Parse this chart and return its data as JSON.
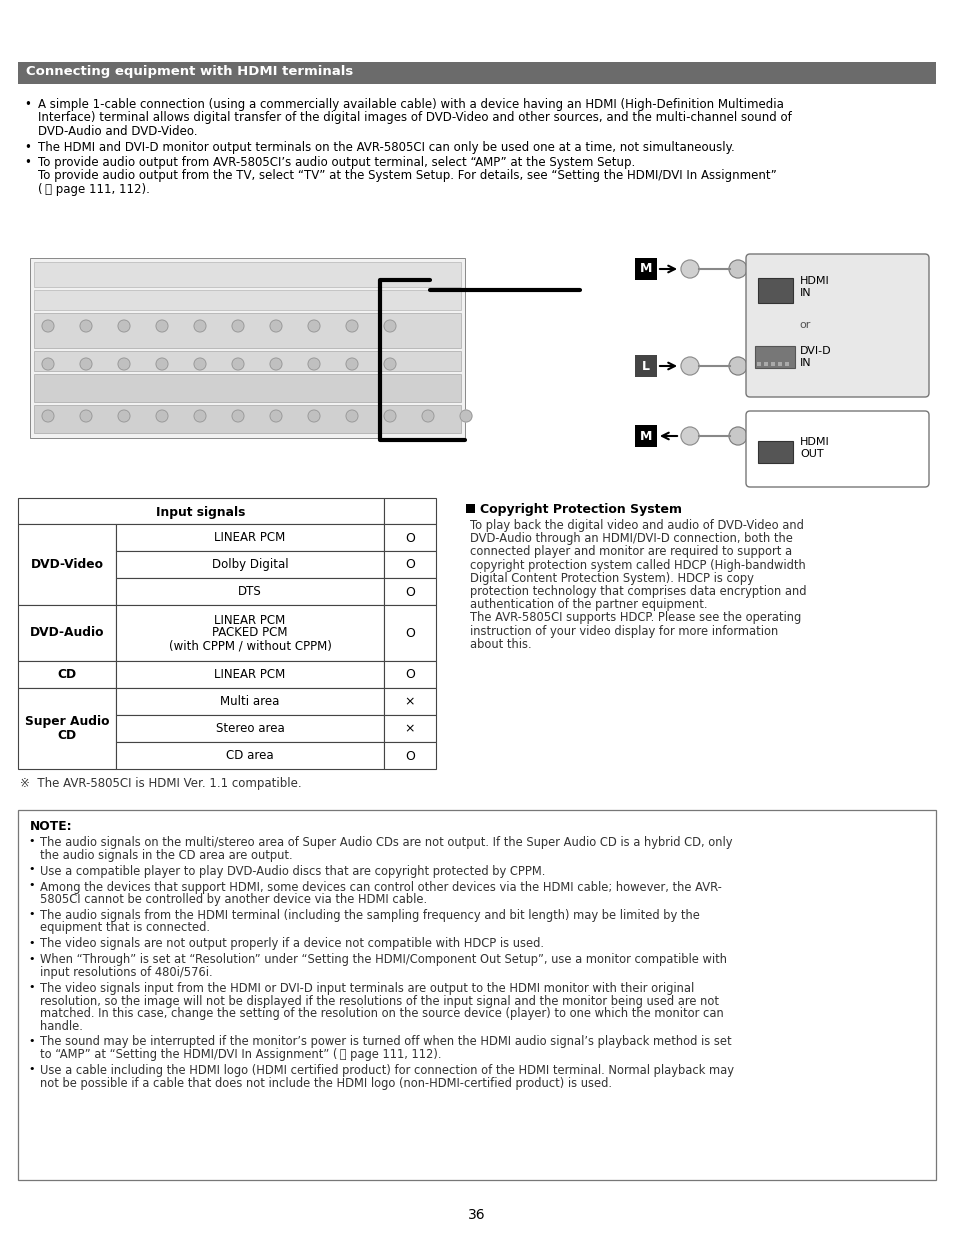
{
  "page_bg": "#ffffff",
  "header_bg": "#6b6b6b",
  "header_text": "Connecting equipment with HDMI terminals",
  "header_text_color": "#ffffff",
  "bullet_points": [
    [
      "A simple 1-cable connection (using a commercially available cable) with a device having an HDMI (High-Definition Multimedia",
      "Interface) terminal allows digital transfer of the digital images of DVD-Video and other sources, and the multi-channel sound of",
      "DVD-Audio and DVD-Video."
    ],
    [
      "The HDMI and DVI-D monitor output terminals on the AVR-5805CI can only be used one at a time, not simultaneously."
    ],
    [
      "To provide audio output from AVR-5805CI’s audio output terminal, select “AMP” at the System Setup.",
      "To provide audio output from the TV, select “TV” at the System Setup. For details, see “Setting the HDMI/DVI In Assignment”",
      "(  page 111, 112)."
    ]
  ],
  "table_header": "Input signals",
  "table_rows": [
    [
      "DVD-Video",
      "LINEAR PCM",
      "O"
    ],
    [
      "DVD-Video",
      "Dolby Digital",
      "O"
    ],
    [
      "DVD-Video",
      "DTS",
      "O"
    ],
    [
      "DVD-Audio",
      "LINEAR PCM\nPACKED PCM\n(with CPPM / without CPPM)",
      "O"
    ],
    [
      "CD",
      "LINEAR PCM",
      "O"
    ],
    [
      "Super Audio\nCD",
      "Multi area",
      "×"
    ],
    [
      "Super Audio\nCD",
      "Stereo area",
      "×"
    ],
    [
      "Super Audio\nCD",
      "CD area",
      "O"
    ]
  ],
  "footnote": "※  The AVR-5805CI is HDMI Ver. 1.1 compatible.",
  "copyright_title": "Copyright Protection System",
  "copyright_text_lines": [
    "To play back the digital video and audio of DVD-Video and",
    "DVD-Audio through an HDMI/DVI-D connection, both the",
    "connected player and monitor are required to support a",
    "copyright protection system called HDCP (High-bandwidth",
    "Digital Content Protection System). HDCP is copy",
    "protection technology that comprises data encryption and",
    "authentication of the partner equipment.",
    "The AVR-5805CI supports HDCP. Please see the operating",
    "instruction of your video display for more information",
    "about this."
  ],
  "note_title": "NOTE:",
  "note_bullets": [
    [
      "The audio signals on the multi/stereo area of Super Audio CDs are not output. If the Super Audio CD is a hybrid CD, only",
      "the audio signals in the CD area are output."
    ],
    [
      "Use a compatible player to play DVD-Audio discs that are copyright protected by CPPM."
    ],
    [
      "Among the devices that support HDMI, some devices can control other devices via the HDMI cable; however, the AVR-",
      "5805CI cannot be controlled by another device via the HDMI cable."
    ],
    [
      "The audio signals from the HDMI terminal (including the sampling frequency and bit length) may be limited by the",
      "equipment that is connected."
    ],
    [
      "The video signals are not output properly if a device not compatible with HDCP is used."
    ],
    [
      "When “Through” is set at “Resolution” under “Setting the HDMI/Component Out Setup”, use a monitor compatible with",
      "input resolutions of 480i/576i."
    ],
    [
      "The video signals input from the HDMI or DVI-D input terminals are output to the HDMI monitor with their original",
      "resolution, so the image will not be displayed if the resolutions of the input signal and the monitor being used are not",
      "matched. In this case, change the setting of the resolution on the source device (player) to one which the monitor can",
      "handle."
    ],
    [
      "The sound may be interrupted if the monitor’s power is turned off when the HDMI audio signal’s playback method is set",
      "to “AMP” at “Setting the HDMI/DVI In Assignment” (  page 111, 112)."
    ],
    [
      "Use a cable including the HDMI logo (HDMI certified product) for connection of the HDMI terminal. Normal playback may",
      "not be possible if a cable that does not include the HDMI logo (non-HDMI-certified product) is used."
    ]
  ],
  "page_number": "36"
}
